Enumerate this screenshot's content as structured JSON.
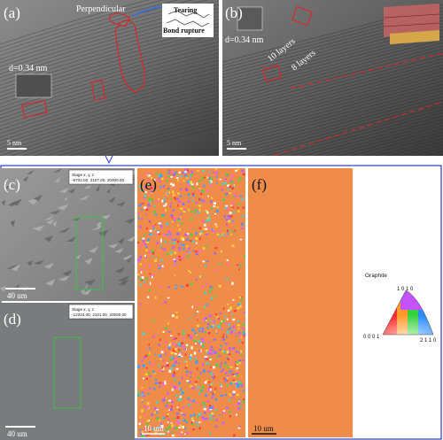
{
  "figure": {
    "panels": {
      "a": {
        "label": "(a)",
        "annotation_top": "Perpendicular",
        "annotation_tearing": "Tearing",
        "annotation_bond": "Bond rupture",
        "spacing": "d=0.34 nm",
        "scale": "5 nm"
      },
      "b": {
        "label": "(b)",
        "spacing": "d=0.34 nm",
        "layers_10": "10 layers",
        "layers_8": "8 layers",
        "scale": "5 nm"
      },
      "c": {
        "label": "(c)",
        "stage_title": "Stage x, y, z",
        "stage_value": "-9702.00, 2107.00, 20000.00",
        "scale": "40 um"
      },
      "d": {
        "label": "(d)",
        "stage_title": "Stage x, y, z",
        "stage_value": "-12224.00, 2101.00, 20000.00",
        "scale": "40 um"
      },
      "e": {
        "label": "(e)",
        "scale": "10 um"
      },
      "f": {
        "label": "(f)",
        "scale": "10 um"
      }
    },
    "legend": {
      "phase": "Graphite",
      "pole_top": "1 0 1 0",
      "pole_left": "0 0 0 1",
      "pole_right": "2 1 1 0"
    },
    "colors": {
      "ebsd_orange": "#f08c4a",
      "selection_green": "#3cc24a",
      "annotation_red": "#d42a2a",
      "frame_blue": "#2c3bbf"
    }
  }
}
